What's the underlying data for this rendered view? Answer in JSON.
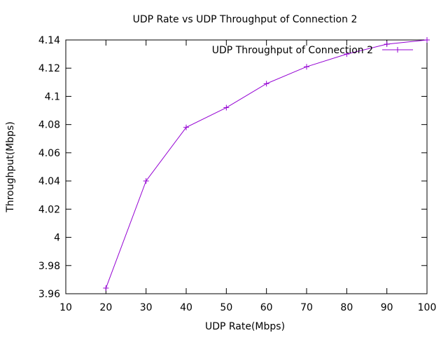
{
  "chart_data": {
    "type": "line",
    "title": "UDP Rate vs UDP Throughput of Connection 2",
    "xlabel": "UDP Rate(Mbps)",
    "ylabel": "Throughput(Mbps)",
    "xlim": [
      10,
      100
    ],
    "ylim": [
      3.96,
      4.14
    ],
    "xticks": [
      10,
      20,
      30,
      40,
      50,
      60,
      70,
      80,
      90,
      100
    ],
    "yticks": [
      3.96,
      3.98,
      4,
      4.02,
      4.04,
      4.06,
      4.08,
      4.1,
      4.12,
      4.14
    ],
    "ytick_labels": [
      "3.96",
      "3.98",
      "4",
      "4.02",
      "4.04",
      "4.06",
      "4.08",
      "4.1",
      "4.12",
      "4.14"
    ],
    "grid": false,
    "legend_position": "top-right",
    "marker": "plus",
    "series": [
      {
        "name": "UDP Throughput of Connection 2",
        "color": "#9400d3",
        "x": [
          20,
          30,
          40,
          50,
          60,
          70,
          80,
          90,
          100
        ],
        "y": [
          3.964,
          4.04,
          4.078,
          4.092,
          4.109,
          4.121,
          4.13,
          4.137,
          4.14
        ]
      }
    ]
  }
}
